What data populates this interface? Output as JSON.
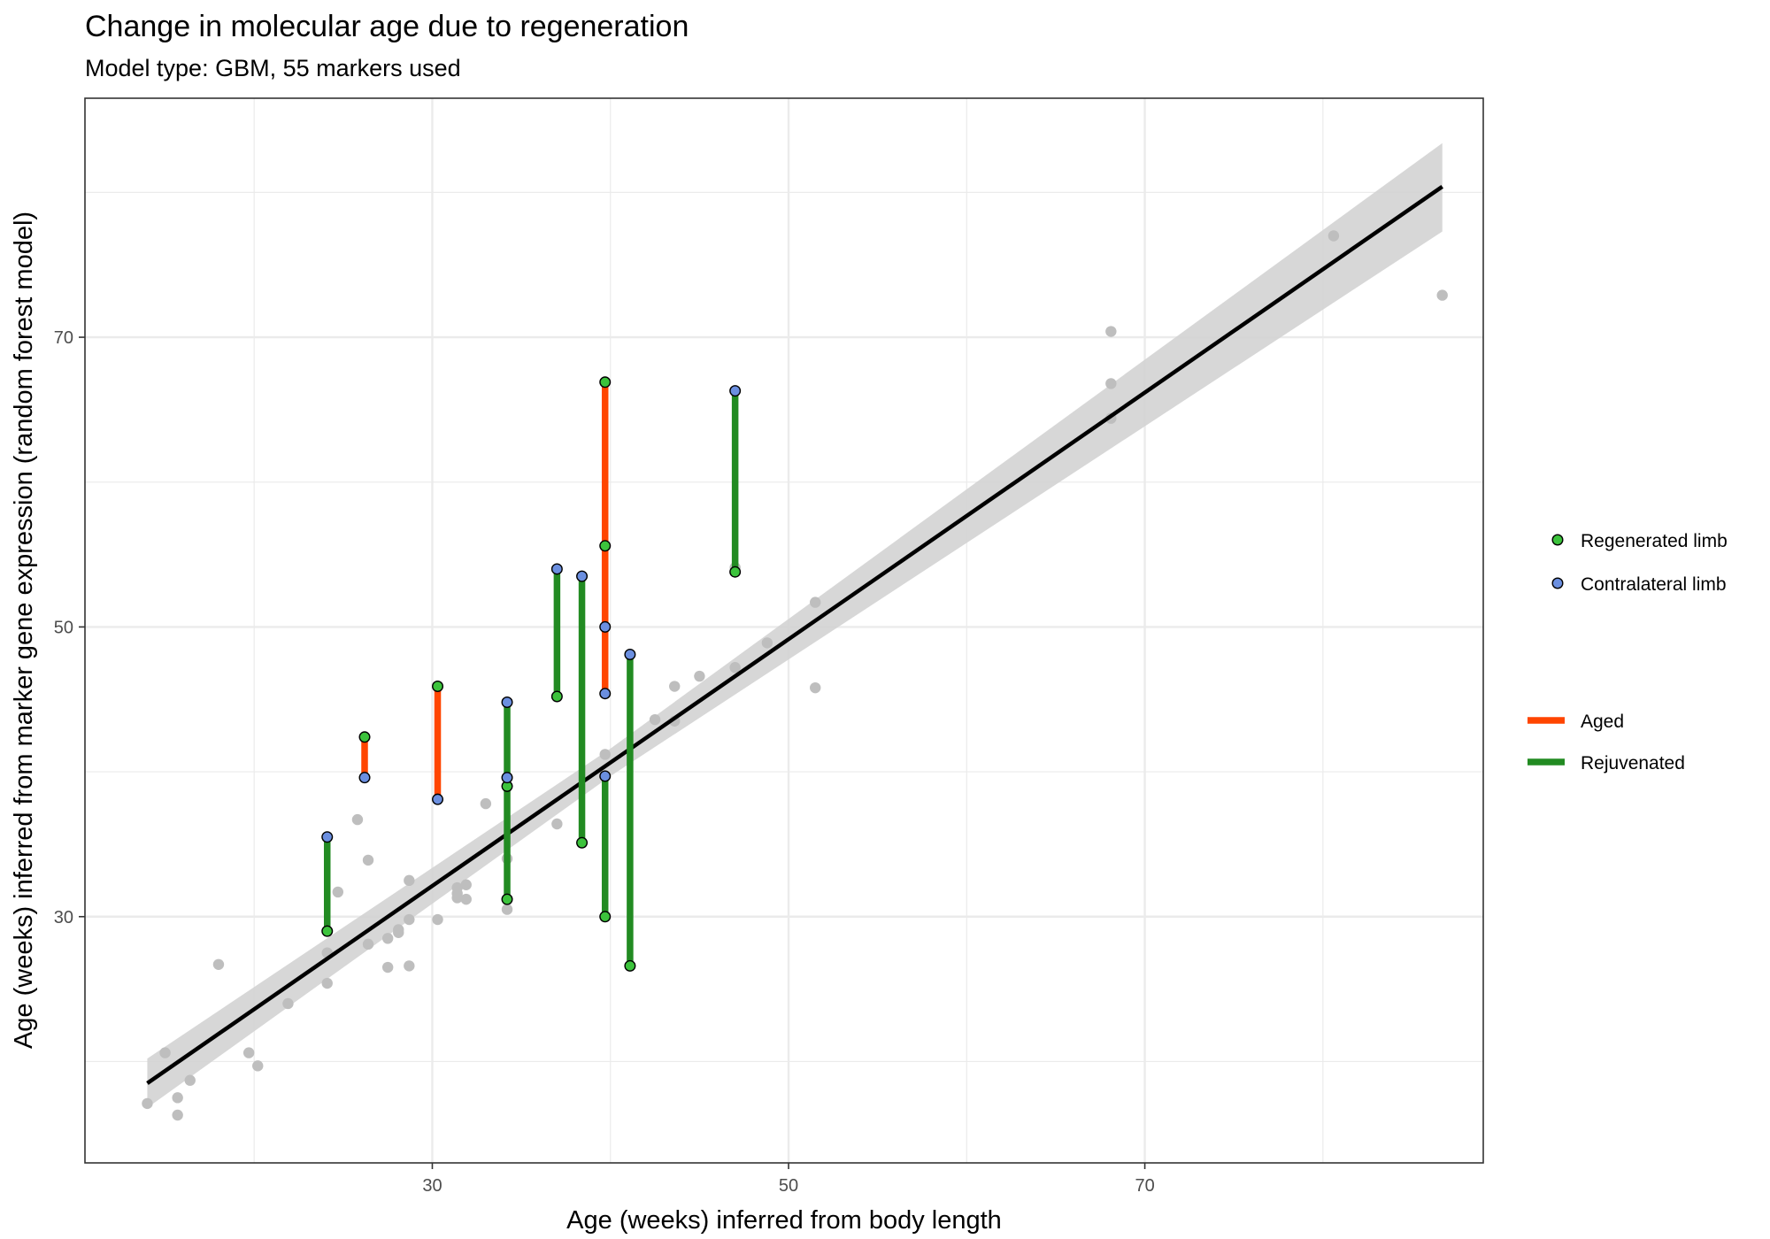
{
  "chart_data": {
    "type": "scatter",
    "title": "Change in molecular age due to regeneration",
    "subtitle": "Model type: GBM, 55 markers used",
    "xlabel": "Age (weeks) inferred from body length",
    "ylabel": "Age (weeks) inferred from marker gene expression (random forest model)",
    "xlim": [
      10.5,
      89.0
    ],
    "ylim": [
      13.0,
      86.5
    ],
    "x_ticks": [
      30,
      50,
      70
    ],
    "y_ticks": [
      30,
      50,
      70
    ],
    "grid": true,
    "colors": {
      "background_point": "#bebebe",
      "regenerated": "#3cc33c",
      "contralateral": "#6b8fe0",
      "aged": "#ff4500",
      "rejuvenated": "#228b22",
      "fit_line": "#000000",
      "ribbon": "#d3d3d3",
      "grid": "#ebebeb"
    },
    "background_points": [
      [
        14,
        17.1
      ],
      [
        15,
        20.6
      ],
      [
        15.7,
        17.5
      ],
      [
        15.7,
        16.3
      ],
      [
        16.4,
        18.7
      ],
      [
        18,
        26.7
      ],
      [
        19.7,
        20.6
      ],
      [
        20.2,
        19.7
      ],
      [
        21.9,
        24
      ],
      [
        24.1,
        27.5
      ],
      [
        24.1,
        25.4
      ],
      [
        24.7,
        31.7
      ],
      [
        25.8,
        36.7
      ],
      [
        26.4,
        33.9
      ],
      [
        26.4,
        28.1
      ],
      [
        27.5,
        28.5
      ],
      [
        27.5,
        26.5
      ],
      [
        28.1,
        29.1
      ],
      [
        28.1,
        28.9
      ],
      [
        28.7,
        29.8
      ],
      [
        28.7,
        26.6
      ],
      [
        28.7,
        32.5
      ],
      [
        30.3,
        29.8
      ],
      [
        31.4,
        31.3
      ],
      [
        31.4,
        31.6
      ],
      [
        31.4,
        32
      ],
      [
        31.9,
        31.2
      ],
      [
        31.9,
        32.2
      ],
      [
        33,
        37.8
      ],
      [
        34.2,
        34
      ],
      [
        34.2,
        30.5
      ],
      [
        37,
        36.4
      ],
      [
        39.7,
        41.2
      ],
      [
        42.5,
        43.6
      ],
      [
        43.6,
        43.5
      ],
      [
        43.6,
        45.9
      ],
      [
        45,
        46.6
      ],
      [
        47,
        47.2
      ],
      [
        47,
        54.1
      ],
      [
        48.8,
        48.9
      ],
      [
        51.5,
        45.8
      ],
      [
        51.5,
        51.7
      ],
      [
        68.1,
        64.4
      ],
      [
        68.1,
        66.8
      ],
      [
        68.1,
        70.4
      ],
      [
        80.6,
        77
      ],
      [
        86.7,
        72.9
      ]
    ],
    "pairs": [
      {
        "x": 24.1,
        "regenerated": 29,
        "contralateral": 35.5,
        "status": "Rejuvenated"
      },
      {
        "x": 26.2,
        "regenerated": 42.4,
        "contralateral": 39.6,
        "status": "Aged"
      },
      {
        "x": 30.3,
        "regenerated": 45.9,
        "contralateral": 38.1,
        "status": "Aged"
      },
      {
        "x": 34.2,
        "regenerated": 31.2,
        "contralateral": 44.8,
        "status": "Rejuvenated"
      },
      {
        "x": 34.2,
        "regenerated": 39,
        "contralateral": 39.6,
        "status": "Rejuvenated"
      },
      {
        "x": 37,
        "regenerated": 45.2,
        "contralateral": 54,
        "status": "Rejuvenated"
      },
      {
        "x": 38.4,
        "regenerated": 35.1,
        "contralateral": 53.5,
        "status": "Rejuvenated"
      },
      {
        "x": 39.7,
        "regenerated": 66.9,
        "contralateral": 45.4,
        "status": "Aged"
      },
      {
        "x": 39.7,
        "regenerated": 55.6,
        "contralateral": 50,
        "status": "Aged"
      },
      {
        "x": 39.7,
        "regenerated": 30,
        "contralateral": 39.7,
        "status": "Rejuvenated"
      },
      {
        "x": 41.1,
        "regenerated": 26.6,
        "contralateral": 48.1,
        "status": "Rejuvenated"
      },
      {
        "x": 47,
        "regenerated": 53.8,
        "contralateral": 66.3,
        "status": "Rejuvenated"
      }
    ],
    "fit_line": {
      "x": [
        14,
        86.7
      ],
      "y": [
        18.5,
        80.4
      ]
    },
    "ribbon": {
      "x": [
        14,
        40,
        86.7
      ],
      "upper": [
        20.2,
        41.6,
        83.4
      ],
      "lower": [
        16.8,
        39.7,
        77.3
      ]
    },
    "legend": {
      "placement": "right",
      "points": [
        {
          "label": "Regenerated limb",
          "key": "regenerated"
        },
        {
          "label": "Contralateral limb",
          "key": "contralateral"
        }
      ],
      "lines": [
        {
          "label": "Aged",
          "key": "aged"
        },
        {
          "label": "Rejuvenated",
          "key": "rejuvenated"
        }
      ]
    }
  }
}
